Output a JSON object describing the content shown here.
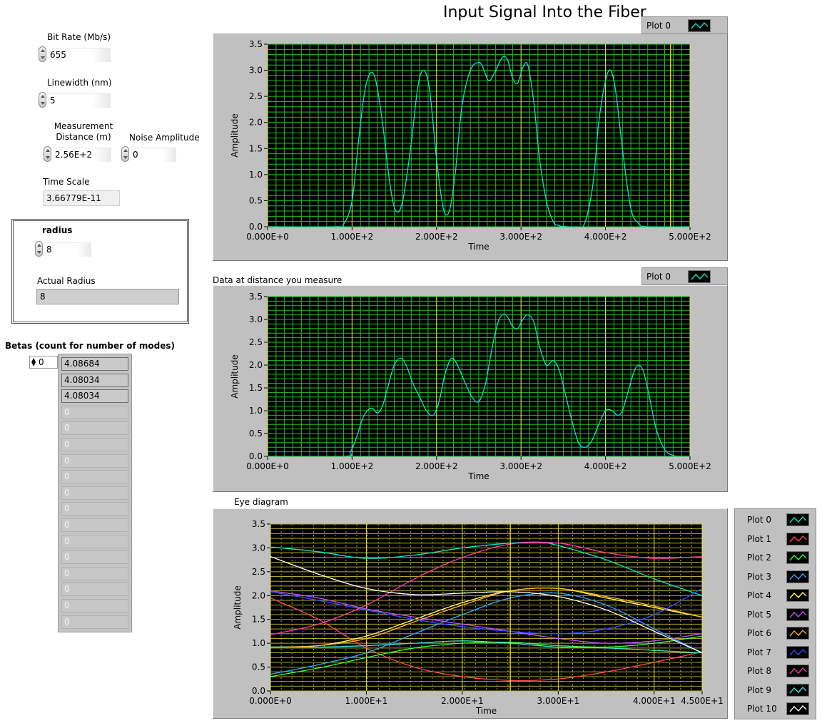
{
  "controls": {
    "bit_rate": {
      "label": "Bit Rate (Mb/s)",
      "value": "655"
    },
    "linewidth": {
      "label": "Linewidth (nm)",
      "value": "5"
    },
    "distance": {
      "label": "Measurement Distance (m)",
      "value": "2.56E+2"
    },
    "noise": {
      "label": "Noise Amplitude",
      "value": "0"
    },
    "time_scale": {
      "label": "Time Scale",
      "value": "3.66779E-11"
    },
    "radius": {
      "label": "radius",
      "value": "8"
    },
    "actual_radius": {
      "label": "Actual Radius",
      "value": "8"
    }
  },
  "betas": {
    "label": "Betas (count for number of modes)",
    "index": "0",
    "values": [
      "4.08684",
      "4.08034",
      "4.08034",
      "0",
      "0",
      "0",
      "0",
      "0",
      "0",
      "0",
      "0",
      "0",
      "0",
      "0",
      "0",
      "0",
      "0"
    ]
  },
  "plot_colors": {
    "plot0": "#00e6c8",
    "plot1": "#ff4b4b",
    "plot2": "#33ff33",
    "plot3": "#2fa8ff",
    "plot4": "#ffff55",
    "plot5": "#c050ff",
    "plot6": "#ffb020",
    "plot7": "#3050ff",
    "plot8": "#ff3aa6",
    "plot9": "#40e0d0",
    "plot10": "#ffffff"
  },
  "chart_data": [
    {
      "type": "line",
      "title": "Input Signal Into the Fiber",
      "xlabel": "Time",
      "ylabel": "Amplitude",
      "xlim": [
        0,
        500
      ],
      "ylim": [
        0,
        3.5
      ],
      "xticks": [
        "0.000E+0",
        "1.000E+2",
        "2.000E+2",
        "3.000E+2",
        "4.000E+2",
        "5.000E+2"
      ],
      "yticks": [
        "0.0",
        "0.5",
        "1.0",
        "1.5",
        "2.0",
        "2.5",
        "3.0",
        "3.5"
      ],
      "series": [
        {
          "name": "Plot 0",
          "color": "#00e6c8",
          "x": [
            0,
            80,
            90,
            100,
            108,
            115,
            122,
            128,
            136,
            145,
            152,
            160,
            170,
            178,
            185,
            192,
            200,
            208,
            215,
            222,
            230,
            240,
            250,
            255,
            262,
            270,
            278,
            284,
            290,
            296,
            302,
            308,
            315,
            322,
            330,
            338,
            345,
            355,
            365,
            375,
            385,
            392,
            400,
            406,
            412,
            420,
            430,
            440,
            450,
            500
          ],
          "y": [
            0,
            0,
            0.05,
            0.5,
            1.7,
            2.6,
            2.95,
            2.8,
            2.0,
            0.8,
            0.3,
            0.5,
            1.6,
            2.7,
            3.0,
            2.6,
            1.3,
            0.35,
            0.3,
            1.0,
            2.3,
            3.0,
            3.15,
            3.05,
            2.8,
            3.0,
            3.25,
            3.2,
            2.85,
            2.75,
            3.05,
            3.1,
            2.4,
            1.3,
            0.5,
            0.1,
            0.02,
            0,
            0,
            0.05,
            0.8,
            2.0,
            2.8,
            3.0,
            2.6,
            1.5,
            0.35,
            0.05,
            0,
            0
          ]
        }
      ]
    },
    {
      "type": "line",
      "title": "Data at distance you measure",
      "xlabel": "Time",
      "ylabel": "Amplitude",
      "xlim": [
        0,
        500
      ],
      "ylim": [
        0,
        3.5
      ],
      "xticks": [
        "0.000E+0",
        "1.000E+2",
        "2.000E+2",
        "3.000E+2",
        "4.000E+2",
        "5.000E+2"
      ],
      "yticks": [
        "0.0",
        "0.5",
        "1.0",
        "1.5",
        "2.0",
        "2.5",
        "3.0",
        "3.5"
      ],
      "series": [
        {
          "name": "Plot 0",
          "color": "#00e6c8",
          "x": [
            0,
            90,
            98,
            105,
            112,
            118,
            124,
            130,
            136,
            142,
            150,
            158,
            165,
            172,
            180,
            188,
            196,
            203,
            210,
            218,
            226,
            234,
            242,
            250,
            258,
            266,
            274,
            282,
            290,
            296,
            302,
            308,
            315,
            322,
            330,
            338,
            345,
            352,
            360,
            368,
            376,
            384,
            392,
            400,
            408,
            414,
            420,
            428,
            436,
            444,
            452,
            460,
            470,
            480,
            490,
            500
          ],
          "y": [
            0,
            0,
            0.1,
            0.4,
            0.8,
            1.0,
            1.05,
            0.95,
            1.1,
            1.5,
            2.0,
            2.15,
            1.95,
            1.6,
            1.3,
            1.0,
            0.9,
            1.2,
            1.8,
            2.15,
            1.95,
            1.6,
            1.3,
            1.2,
            1.6,
            2.4,
            3.0,
            3.1,
            2.85,
            2.8,
            3.0,
            3.1,
            2.95,
            2.4,
            2.0,
            2.1,
            1.9,
            1.4,
            0.8,
            0.3,
            0.2,
            0.35,
            0.7,
            1.0,
            1.0,
            0.9,
            1.0,
            1.5,
            1.95,
            1.9,
            1.3,
            0.6,
            0.15,
            0.02,
            0,
            0
          ]
        }
      ]
    },
    {
      "type": "line",
      "title": "Eye diagram",
      "xlabel": "Time",
      "ylabel": "Amplitude",
      "xlim": [
        0,
        45
      ],
      "ylim": [
        0,
        3.5
      ],
      "xticks": [
        "0.000E+0",
        "1.000E+1",
        "2.000E+1",
        "3.000E+1",
        "4.000E+1",
        "4.500E+1"
      ],
      "yticks": [
        "0.0",
        "0.5",
        "1.0",
        "1.5",
        "2.0",
        "2.5",
        "3.0",
        "3.5"
      ],
      "series": [
        {
          "name": "Plot 0",
          "color": "#00e6c8",
          "x": [
            0,
            5,
            10,
            15,
            20,
            25,
            28,
            30,
            35,
            40,
            45
          ],
          "y": [
            3.02,
            2.92,
            2.78,
            2.85,
            3.0,
            3.1,
            3.12,
            3.05,
            2.75,
            2.35,
            2.0
          ]
        },
        {
          "name": "Plot 1",
          "color": "#ff4b4b",
          "x": [
            0,
            5,
            10,
            15,
            20,
            25,
            30,
            35,
            40,
            45
          ],
          "y": [
            1.95,
            1.5,
            0.9,
            0.5,
            0.3,
            0.22,
            0.25,
            0.4,
            0.6,
            0.82
          ]
        },
        {
          "name": "Plot 2",
          "color": "#33ff33",
          "x": [
            0,
            5,
            10,
            15,
            20,
            25,
            30,
            35,
            40,
            45
          ],
          "y": [
            0.3,
            0.48,
            0.7,
            0.9,
            1.0,
            1.02,
            0.95,
            0.92,
            1.0,
            1.15
          ]
        },
        {
          "name": "Plot 3",
          "color": "#2fa8ff",
          "x": [
            0,
            5,
            10,
            15,
            20,
            25,
            30,
            35,
            40,
            45
          ],
          "y": [
            0.35,
            0.55,
            0.8,
            1.2,
            1.6,
            1.95,
            2.05,
            1.8,
            1.3,
            0.8
          ]
        },
        {
          "name": "Plot 4",
          "color": "#ffff55",
          "x": [
            0,
            5,
            10,
            15,
            20,
            25,
            30,
            35,
            40,
            45
          ],
          "y": [
            0.92,
            0.95,
            1.15,
            1.5,
            1.85,
            2.1,
            2.15,
            1.95,
            1.75,
            1.55
          ]
        },
        {
          "name": "Plot 5",
          "color": "#c050ff",
          "x": [
            0,
            5,
            10,
            15,
            20,
            25,
            30,
            35,
            40,
            45
          ],
          "y": [
            2.1,
            1.95,
            1.72,
            1.55,
            1.4,
            1.25,
            1.1,
            1.0,
            1.05,
            1.2
          ]
        },
        {
          "name": "Plot 6",
          "color": "#ffb020",
          "x": [
            0,
            5,
            10,
            15,
            20,
            25,
            30,
            35,
            40,
            45
          ],
          "y": [
            0.92,
            0.95,
            1.1,
            1.45,
            1.8,
            2.1,
            2.15,
            1.98,
            1.78,
            1.55
          ]
        },
        {
          "name": "Plot 7",
          "color": "#3050ff",
          "x": [
            0,
            5,
            10,
            15,
            20,
            25,
            30,
            35,
            40,
            45
          ],
          "y": [
            2.08,
            1.9,
            1.7,
            1.5,
            1.35,
            1.25,
            1.2,
            1.3,
            1.6,
            2.15
          ]
        },
        {
          "name": "Plot 8",
          "color": "#ff3aa6",
          "x": [
            0,
            5,
            10,
            15,
            20,
            25,
            30,
            35,
            40,
            45
          ],
          "y": [
            1.18,
            1.4,
            1.8,
            2.35,
            2.8,
            3.08,
            3.1,
            2.9,
            2.78,
            2.82
          ]
        },
        {
          "name": "Plot 9",
          "color": "#40e0d0",
          "x": [
            0,
            5,
            10,
            15,
            20,
            25,
            30,
            35,
            40,
            45
          ],
          "y": [
            0.92,
            0.92,
            0.95,
            1.0,
            1.05,
            1.0,
            0.92,
            0.9,
            0.85,
            0.8
          ]
        },
        {
          "name": "Plot 10",
          "color": "#ffffff",
          "x": [
            0,
            5,
            10,
            15,
            20,
            25,
            30,
            35,
            40,
            45
          ],
          "y": [
            2.82,
            2.45,
            2.15,
            2.02,
            2.05,
            2.08,
            1.98,
            1.7,
            1.25,
            0.8
          ]
        }
      ]
    }
  ],
  "legends": {
    "top": "Plot 0",
    "middle": "Plot 0",
    "eye": [
      "Plot 0",
      "Plot 1",
      "Plot 2",
      "Plot 3",
      "Plot 4",
      "Plot 5",
      "Plot 6",
      "Plot 7",
      "Plot 8",
      "Plot 9",
      "Plot 10"
    ]
  }
}
